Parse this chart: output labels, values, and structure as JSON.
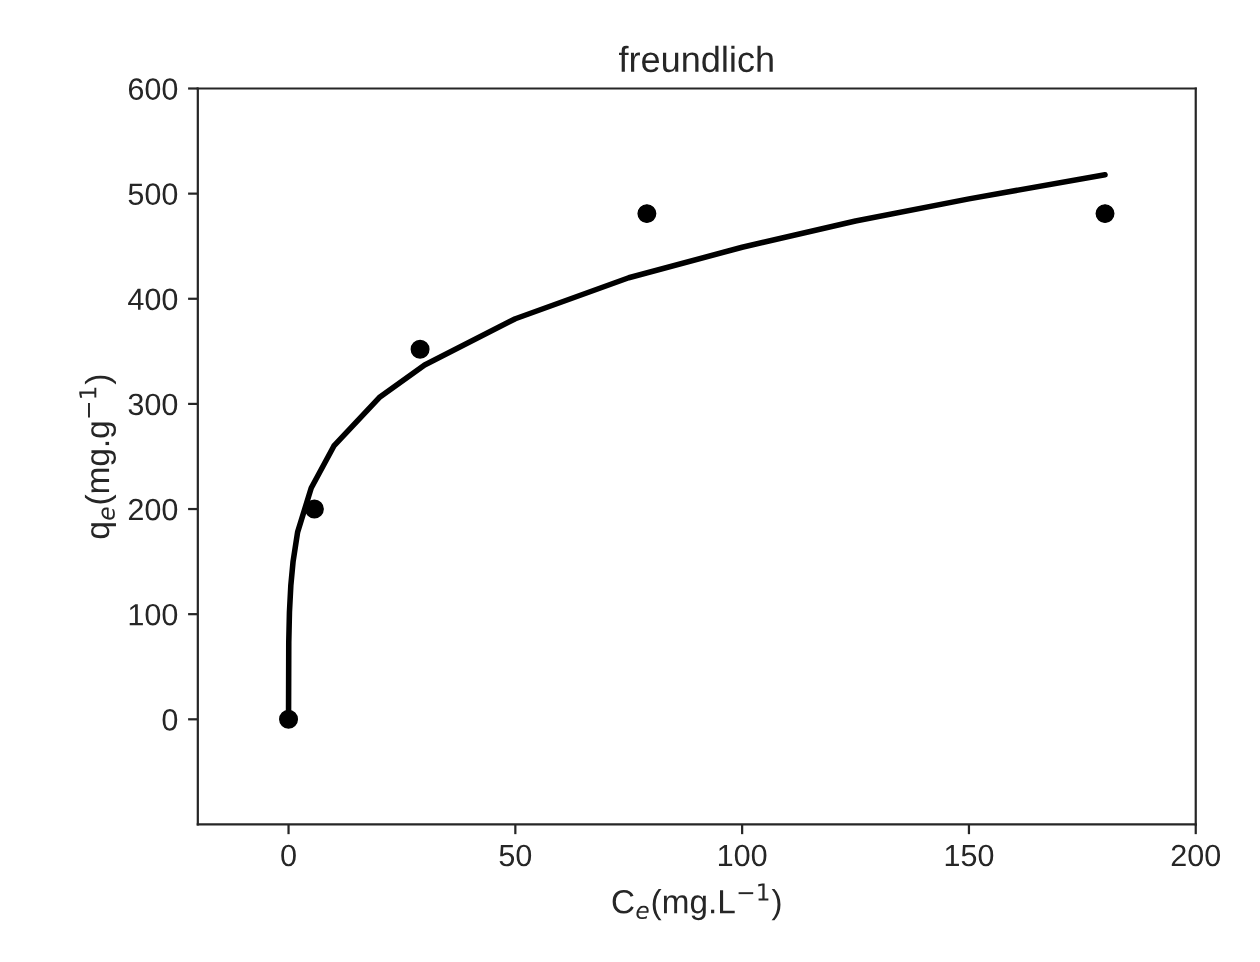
{
  "chart_data": {
    "type": "scatter",
    "title": "freundlich",
    "xlabel": "C$_{e}$(mg.L$^{−1}$)",
    "ylabel": "q$_{e}$(mg.g$^{−1}$)",
    "series": [
      {
        "color": "#000000",
        "marker": "circle",
        "x": [
          0,
          5.7,
          29,
          79,
          180
        ],
        "values": [
          0,
          200,
          352,
          481,
          481
        ]
      },
      {
        "type": "line",
        "color": "#000000",
        "marker": "none",
        "line_style": "solid",
        "x": [
          0,
          0.05,
          0.2,
          0.5,
          1,
          2,
          5,
          10,
          20,
          30,
          50,
          75,
          100,
          125,
          150,
          180
        ],
        "values": [
          0,
          73,
          102,
          127,
          150,
          178,
          220,
          260,
          306,
          337,
          381,
          420,
          449,
          474,
          495,
          518
        ]
      }
    ],
    "xlim": [
      -20,
      200
    ],
    "xticks": [
      0,
      50,
      100,
      150,
      200
    ],
    "ylim": [
      -100,
      600
    ],
    "yticks": [
      0,
      100,
      200,
      300,
      400,
      500,
      600
    ],
    "grid": false,
    "legend": false
  }
}
